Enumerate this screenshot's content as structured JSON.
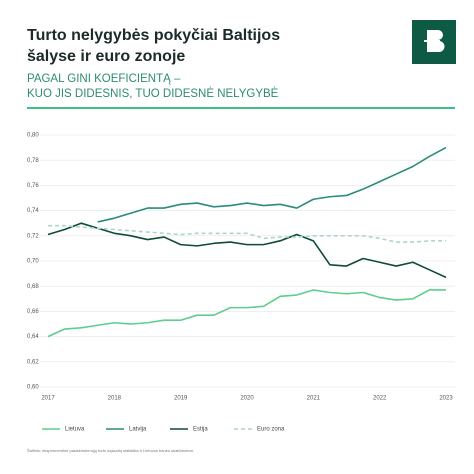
{
  "chart_data": {
    "type": "line",
    "title_lines": [
      "Turto nelygybės pokyčiai Baltijos",
      "šalyse ir euro zonoje"
    ],
    "subtitle_lines": [
      "PAGAL GINI KOEFICIENTĄ –",
      "KUO JIS DIDESNIS, TUO DIDESNĖ NELYGYBĖ"
    ],
    "source": "Šaltinis: ekspermentinė pasiskirstomųjų turto sąskaitų statistika ir Lietuvos banko skaičiavimai.",
    "x": [
      2017,
      2017.25,
      2017.5,
      2017.75,
      2018,
      2018.25,
      2018.5,
      2018.75,
      2019,
      2019.25,
      2019.5,
      2019.75,
      2020,
      2020.25,
      2020.5,
      2020.75,
      2021,
      2021.25,
      2021.5,
      2021.75,
      2022,
      2022.25,
      2022.5,
      2022.75,
      2023
    ],
    "xlim": [
      2017,
      2023
    ],
    "xticks": [
      2017,
      2018,
      2019,
      2020,
      2021,
      2022,
      2023
    ],
    "ylim": [
      0.6,
      0.8
    ],
    "yticks": [
      {
        "value": 0.6,
        "label": "0,60"
      },
      {
        "value": 0.62,
        "label": "0,62"
      },
      {
        "value": 0.64,
        "label": "0,64"
      },
      {
        "value": 0.66,
        "label": "0,66"
      },
      {
        "value": 0.68,
        "label": "0,68"
      },
      {
        "value": 0.7,
        "label": "0,70"
      },
      {
        "value": 0.72,
        "label": "0,72"
      },
      {
        "value": 0.74,
        "label": "0,74"
      },
      {
        "value": 0.76,
        "label": "0,76"
      },
      {
        "value": 0.78,
        "label": "0,78"
      },
      {
        "value": 0.8,
        "label": "0,80"
      }
    ],
    "grid": true,
    "series": [
      {
        "name": "Lietuva",
        "color": "#5ccf8c",
        "dashed": false,
        "values": [
          0.64,
          0.646,
          0.647,
          0.649,
          0.651,
          0.65,
          0.651,
          0.653,
          0.653,
          0.657,
          0.657,
          0.663,
          0.663,
          0.664,
          0.672,
          0.673,
          0.677,
          0.675,
          0.674,
          0.675,
          0.671,
          0.669,
          0.67,
          0.677,
          0.677
        ]
      },
      {
        "name": "Latvija",
        "color": "#2a8c79",
        "dashed": false,
        "values": [
          null,
          null,
          null,
          0.731,
          0.734,
          0.738,
          0.742,
          0.742,
          0.745,
          0.746,
          0.743,
          0.744,
          0.746,
          0.744,
          0.745,
          0.742,
          0.749,
          0.751,
          0.752,
          0.757,
          0.763,
          0.769,
          0.775,
          0.783,
          0.79
        ]
      },
      {
        "name": "Estija",
        "color": "#0f4a3e",
        "dashed": false,
        "values": [
          0.721,
          0.725,
          0.73,
          0.726,
          0.722,
          0.72,
          0.717,
          0.719,
          0.713,
          0.712,
          0.714,
          0.715,
          0.713,
          0.713,
          0.716,
          0.721,
          0.716,
          0.697,
          0.696,
          0.702,
          0.699,
          0.696,
          0.699,
          0.693,
          0.687
        ]
      },
      {
        "name": "Euro zona",
        "color": "#a8d9c3",
        "dashed": true,
        "values": [
          0.728,
          0.728,
          0.727,
          0.726,
          0.725,
          0.724,
          0.723,
          0.722,
          0.721,
          0.722,
          0.722,
          0.722,
          0.722,
          0.718,
          0.719,
          0.719,
          0.72,
          0.72,
          0.72,
          0.72,
          0.718,
          0.715,
          0.715,
          0.716,
          0.716
        ]
      }
    ]
  }
}
